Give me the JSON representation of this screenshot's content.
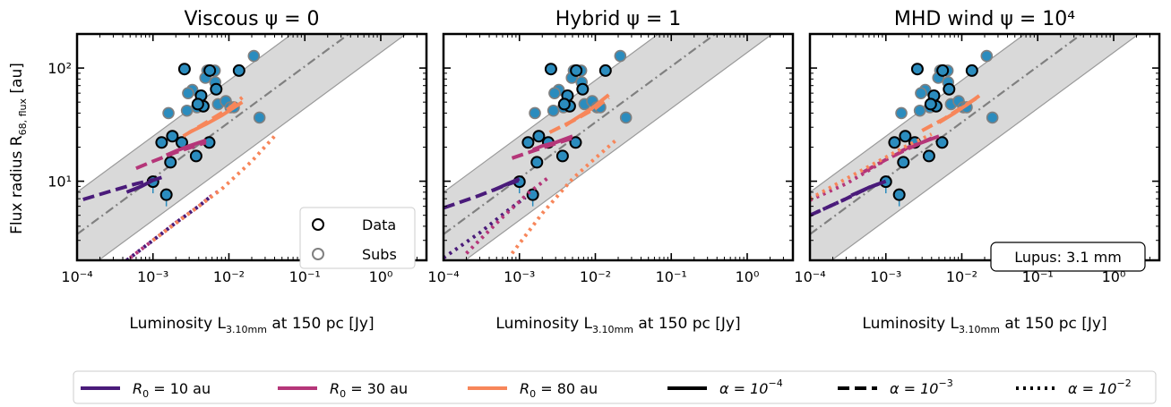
{
  "figure": {
    "y_axis_label": "Flux radius R",
    "y_axis_label_sub": "68, flux",
    "y_axis_label_unit": " [au]",
    "x_axis_label": "Luminosity L",
    "x_axis_label_sub": "3.10mm",
    "x_axis_label_unit": " at 150 pc [Jy]",
    "panel_legend": {
      "data": "Data",
      "subs": "Subs"
    },
    "annotation": "Lupus: 3.1 mm",
    "bottom_legend": [
      {
        "label_main": "R",
        "label_sub": "0",
        "label_rest": " = 10 au",
        "color": "#4a1b7a",
        "style": "solid"
      },
      {
        "label_main": "R",
        "label_sub": "0",
        "label_rest": " = 30 au",
        "color": "#b53679",
        "style": "solid"
      },
      {
        "label_main": "R",
        "label_sub": "0",
        "label_rest": " = 80 au",
        "color": "#f7865a",
        "style": "solid"
      },
      {
        "label_main": "α = 10",
        "label_sup": "−4",
        "color": "#000000",
        "style": "solid"
      },
      {
        "label_main": "α = 10",
        "label_sup": "−3",
        "color": "#000000",
        "style": "dashed"
      },
      {
        "label_main": "α = 10",
        "label_sup": "−2",
        "color": "#000000",
        "style": "dotted"
      }
    ],
    "colors": {
      "point_fill": "#2b8cbe",
      "band": "#d9d9d9",
      "trend": "#808080"
    }
  },
  "chart_data": [
    {
      "type": "scatter",
      "title": "Viscous ψ = 0",
      "xscale": "log",
      "yscale": "log",
      "xlim": [
        0.0001,
        4
      ],
      "ylim": [
        2,
        200
      ],
      "xticks": [
        "10⁻⁴",
        "10⁻³",
        "10⁻²",
        "10⁻¹",
        "10⁰"
      ],
      "yticks": [
        "10¹",
        "10²"
      ],
      "annotation": false,
      "model_lines": [
        {
          "R0": "10 au",
          "alpha": "1e-4",
          "x": [
            0.00045,
            0.0007,
            0.001,
            0.0013
          ],
          "y": [
            8,
            9,
            10.2,
            10.8
          ]
        },
        {
          "R0": "10 au",
          "alpha": "1e-3",
          "x": [
            0.00012,
            0.0003,
            0.0006,
            0.001
          ],
          "y": [
            6.9,
            8.3,
            9.5,
            10.3
          ]
        },
        {
          "R0": "10 au",
          "alpha": "1e-2",
          "x": [
            0.00045,
            0.001,
            0.002,
            0.004,
            0.006
          ],
          "y": [
            2,
            3,
            4.3,
            6,
            7.5
          ]
        },
        {
          "R0": "30 au",
          "alpha": "1e-4",
          "x": [
            0.0015,
            0.002,
            0.003,
            0.005
          ],
          "y": [
            17,
            18.5,
            20.5,
            23
          ]
        },
        {
          "R0": "30 au",
          "alpha": "1e-3",
          "x": [
            0.0006,
            0.001,
            0.002,
            0.004,
            0.005
          ],
          "y": [
            13,
            15,
            18,
            21,
            22
          ]
        },
        {
          "R0": "30 au",
          "alpha": "1e-2",
          "x": [
            0.0005,
            0.001,
            0.002,
            0.004,
            0.006,
            0.008
          ],
          "y": [
            2.1,
            3,
            4.3,
            6,
            7.5,
            8.5
          ]
        },
        {
          "R0": "80 au",
          "alpha": "1e-4",
          "x": [
            0.003,
            0.005,
            0.008,
            0.015
          ],
          "y": [
            27,
            32,
            38,
            50
          ]
        },
        {
          "R0": "80 au",
          "alpha": "1e-3",
          "x": [
            0.0025,
            0.005,
            0.01,
            0.015
          ],
          "y": [
            25,
            33,
            44,
            55
          ]
        },
        {
          "R0": "80 au",
          "alpha": "1e-2",
          "x": [
            0.001,
            0.003,
            0.008,
            0.02,
            0.04
          ],
          "y": [
            3,
            5.2,
            8.5,
            15,
            25
          ]
        }
      ]
    },
    {
      "type": "scatter",
      "title": "Hybrid ψ = 1",
      "xscale": "log",
      "yscale": "log",
      "xlim": [
        0.0001,
        4
      ],
      "ylim": [
        2,
        200
      ],
      "xticks": [
        "10⁻⁴",
        "10⁻³",
        "10⁻²",
        "10⁻¹",
        "10⁰"
      ],
      "yticks": [
        "10¹",
        "10²"
      ],
      "annotation": false,
      "model_lines": [
        {
          "R0": "10 au",
          "alpha": "1e-4",
          "x": [
            0.00045,
            0.0007,
            0.001
          ],
          "y": [
            8.3,
            9.5,
            10.5
          ]
        },
        {
          "R0": "10 au",
          "alpha": "1e-3",
          "x": [
            0.0001,
            0.0003,
            0.0006,
            0.001
          ],
          "y": [
            5.8,
            7.5,
            9,
            10.2
          ]
        },
        {
          "R0": "10 au",
          "alpha": "1e-2",
          "x": [
            0.0001,
            0.0003,
            0.0007,
            0.0012
          ],
          "y": [
            2.1,
            3.5,
            5.5,
            7.2
          ]
        },
        {
          "R0": "30 au",
          "alpha": "1e-4",
          "x": [
            0.0015,
            0.002,
            0.003,
            0.005
          ],
          "y": [
            19,
            20.5,
            22,
            25
          ]
        },
        {
          "R0": "30 au",
          "alpha": "1e-3",
          "x": [
            0.0008,
            0.0015,
            0.003,
            0.005
          ],
          "y": [
            16,
            18.5,
            21.5,
            24
          ]
        },
        {
          "R0": "30 au",
          "alpha": "1e-2",
          "x": [
            0.0002,
            0.0006,
            0.0013,
            0.0025
          ],
          "y": [
            2.3,
            4.8,
            7.8,
            11
          ]
        },
        {
          "R0": "80 au",
          "alpha": "1e-4",
          "x": [
            0.004,
            0.006,
            0.009,
            0.015
          ],
          "y": [
            31,
            37,
            44,
            58
          ]
        },
        {
          "R0": "80 au",
          "alpha": "1e-3",
          "x": [
            0.0025,
            0.005,
            0.01,
            0.015
          ],
          "y": [
            27,
            34,
            44,
            55
          ]
        },
        {
          "R0": "80 au",
          "alpha": "1e-2",
          "x": [
            0.0008,
            0.002,
            0.005,
            0.01,
            0.02
          ],
          "y": [
            2.3,
            5.2,
            10.5,
            16,
            24
          ]
        }
      ]
    },
    {
      "type": "scatter",
      "title": "MHD wind ψ = 10⁴",
      "xscale": "log",
      "yscale": "log",
      "xlim": [
        0.0001,
        4
      ],
      "ylim": [
        2,
        200
      ],
      "xticks": [
        "10⁻⁴",
        "10⁻³",
        "10⁻²",
        "10⁻¹",
        "10⁰"
      ],
      "yticks": [
        "10¹",
        "10²"
      ],
      "annotation": true,
      "model_lines": [
        {
          "R0": "10 au",
          "alpha": "1e-4",
          "x": [
            0.00035,
            0.0006,
            0.001
          ],
          "y": [
            7.5,
            8.8,
            10
          ]
        },
        {
          "R0": "10 au",
          "alpha": "1e-3",
          "x": [
            0.0001,
            0.0003,
            0.0006,
            0.001
          ],
          "y": [
            5,
            7,
            8.8,
            10
          ]
        },
        {
          "R0": "10 au",
          "alpha": "1e-2",
          "x": [
            0.0001,
            0.0003,
            0.0006,
            0.001
          ],
          "y": [
            5,
            7,
            8.8,
            10
          ]
        },
        {
          "R0": "30 au",
          "alpha": "1e-4",
          "x": [
            0.0015,
            0.002,
            0.003,
            0.005
          ],
          "y": [
            18,
            20,
            22,
            25
          ]
        },
        {
          "R0": "30 au",
          "alpha": "1e-3",
          "x": [
            0.0005,
            0.001,
            0.002,
            0.004
          ],
          "y": [
            12,
            15.5,
            19.5,
            24
          ]
        },
        {
          "R0": "30 au",
          "alpha": "1e-2",
          "x": [
            0.0001,
            0.0003,
            0.0006,
            0.001,
            0.0018
          ],
          "y": [
            6.8,
            9.5,
            12.5,
            15.5,
            19
          ]
        },
        {
          "R0": "80 au",
          "alpha": "1e-4",
          "x": [
            0.005,
            0.008,
            0.012,
            0.017
          ],
          "y": [
            33,
            40,
            48,
            57
          ]
        },
        {
          "R0": "80 au",
          "alpha": "1e-3",
          "x": [
            0.003,
            0.006,
            0.01,
            0.017
          ],
          "y": [
            28,
            36,
            45,
            56
          ]
        },
        {
          "R0": "80 au",
          "alpha": "1e-2",
          "x": [
            0.0001,
            0.0003,
            0.0008,
            0.002,
            0.004
          ],
          "y": [
            7,
            10.5,
            15,
            21,
            26
          ]
        }
      ]
    }
  ],
  "observations": {
    "data": {
      "x": [
        0.0026,
        0.0043,
        0.0056,
        0.0046,
        0.0039,
        0.0013,
        0.0018,
        0.0024,
        0.0017,
        0.0037,
        0.0055,
        0.001,
        0.0015,
        0.0136,
        0.0068
      ],
      "y": [
        98,
        57,
        95,
        46,
        48,
        22,
        25,
        22,
        14.7,
        16.7,
        22,
        9.9,
        7.6,
        95,
        65
      ],
      "err_low": [
        0,
        0,
        0,
        0,
        0,
        0,
        0,
        0,
        0,
        0,
        0,
        1.3,
        1.0,
        0,
        0
      ]
    },
    "subs": {
      "x": [
        0.0016,
        0.0028,
        0.0033,
        0.0052,
        0.0065,
        0.0049,
        0.0066,
        0.0072,
        0.0091,
        0.0105,
        0.0038,
        0.0029,
        0.0116,
        0.0213,
        0.0253
      ],
      "y": [
        40,
        42,
        64,
        95,
        95,
        82,
        75,
        48,
        51,
        45,
        45,
        60,
        45,
        128,
        36.5
      ]
    },
    "trend": {
      "x": [
        0.0001,
        4
      ],
      "y": [
        3.4,
        640
      ],
      "band_factor": 2.35
    }
  }
}
